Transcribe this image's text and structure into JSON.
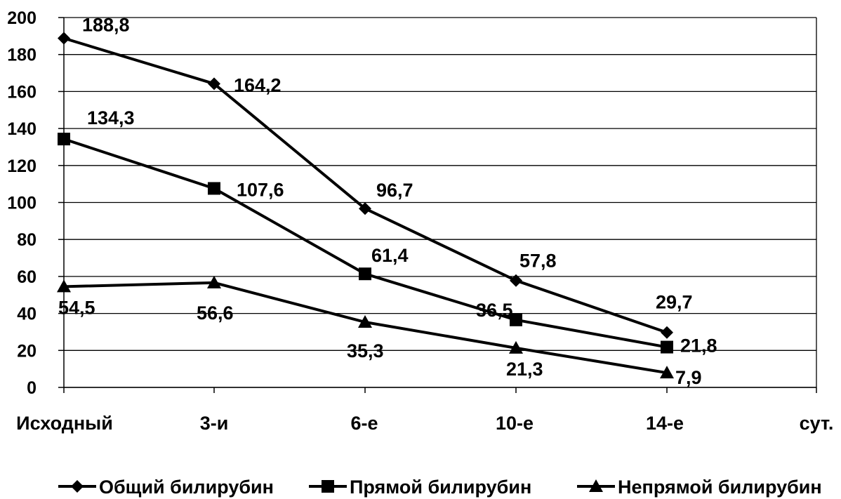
{
  "chart_data": {
    "type": "line",
    "categories": [
      "Исходный",
      "3-и",
      "6-е",
      "10-е",
      "14-е"
    ],
    "x_unit": "сут.",
    "ylim": [
      0,
      200
    ],
    "yticks": [
      "0",
      "20",
      "40",
      "60",
      "80",
      "100",
      "120",
      "140",
      "160",
      "180",
      "200"
    ],
    "grid": true,
    "legend_position": "bottom",
    "series": [
      {
        "name": "Общий билирубин",
        "marker": "diamond",
        "values": [
          188.8,
          164.2,
          96.7,
          57.8,
          29.7
        ],
        "labels": [
          "188,8",
          "164,2",
          "96,7",
          "57,8",
          "29,7"
        ]
      },
      {
        "name": "Прямой билирубин",
        "marker": "square",
        "values": [
          134.3,
          107.6,
          61.4,
          36.5,
          21.8
        ],
        "labels": [
          "134,3",
          "107,6",
          "61,4",
          "36,5",
          "21,8"
        ]
      },
      {
        "name": "Непрямой билирубин",
        "marker": "triangle",
        "values": [
          54.5,
          56.6,
          35.3,
          21.3,
          7.9
        ],
        "labels": [
          "54,5",
          "56,6",
          "35,3",
          "21,3",
          "7,9"
        ]
      }
    ],
    "colors": {
      "line": "#000000",
      "grid": "#000000",
      "background": "#ffffff"
    }
  }
}
